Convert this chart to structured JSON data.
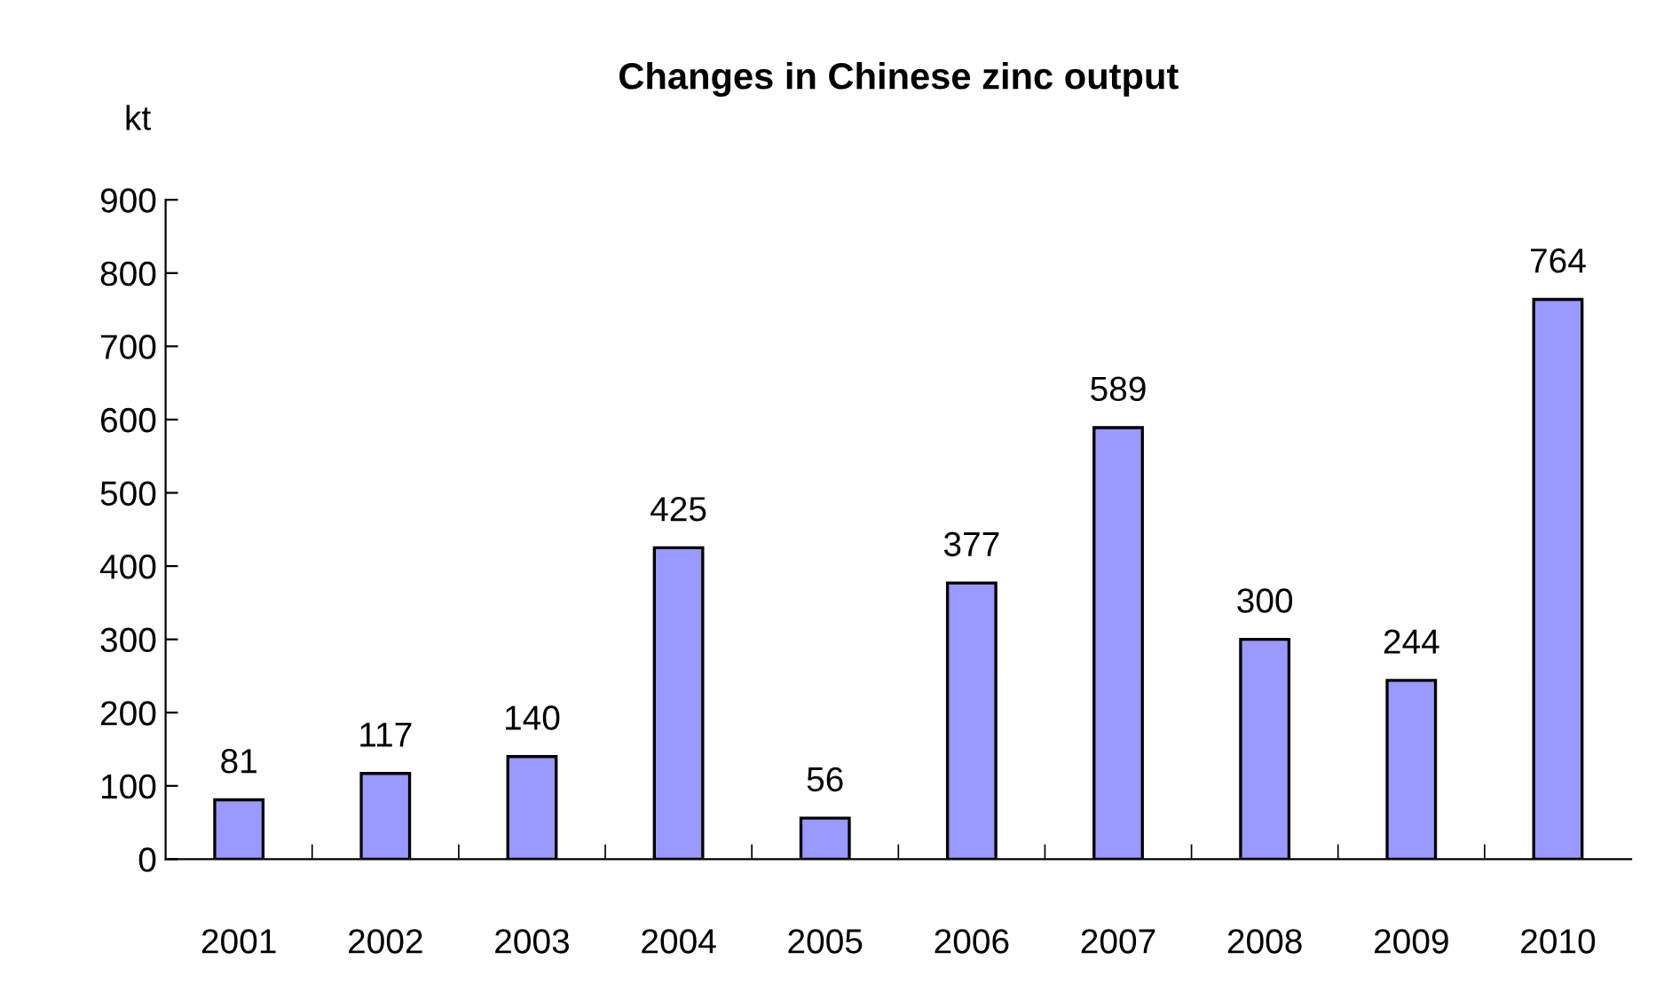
{
  "chart_data": {
    "type": "bar",
    "title": "Changes in Chinese zinc output",
    "ylabel": "kt",
    "categories": [
      "2001",
      "2002",
      "2003",
      "2004",
      "2005",
      "2006",
      "2007",
      "2008",
      "2009",
      "2010"
    ],
    "values": [
      81,
      117,
      140,
      425,
      56,
      377,
      589,
      300,
      244,
      764
    ],
    "color": "#9999ff",
    "ylim": [
      0,
      900
    ],
    "yticks": [
      0,
      100,
      200,
      300,
      400,
      500,
      600,
      700,
      800,
      900
    ],
    "data_labels": true,
    "grid": false,
    "legend": false
  }
}
